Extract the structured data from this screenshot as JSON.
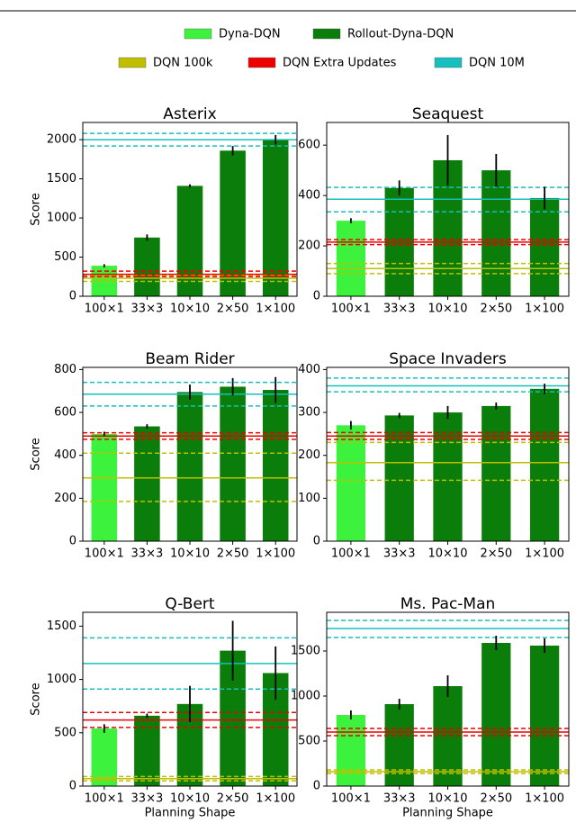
{
  "legend": [
    {
      "name": "Dyna-DQN",
      "color": "#3df23d"
    },
    {
      "name": "Rollout-Dyna-DQN",
      "color": "#0a7d0a"
    },
    {
      "name": "DQN 100k",
      "color": "#bfbf00"
    },
    {
      "name": "DQN Extra Updates",
      "color": "#ee0000"
    },
    {
      "name": "DQN 10M",
      "color": "#17bfbf"
    }
  ],
  "chart_data": [
    {
      "type": "bar",
      "title": "Asterix",
      "ylabel": "Score",
      "categories": [
        "100×1",
        "33×3",
        "10×10",
        "2×50",
        "1×100"
      ],
      "values": [
        390,
        750,
        1410,
        1860,
        2000
      ],
      "errors": [
        20,
        40,
        20,
        60,
        60
      ],
      "bar_colors": [
        "#3df23d",
        "#0a7d0a",
        "#0a7d0a",
        "#0a7d0a",
        "#0a7d0a"
      ],
      "ylim": [
        0,
        2220
      ],
      "yticks": [
        0,
        500,
        1000,
        1500,
        2000
      ],
      "baselines": [
        {
          "color": "#bfbf00",
          "low": 190,
          "mean": 230,
          "high": 270
        },
        {
          "color": "#ee0000",
          "low": 250,
          "mean": 280,
          "high": 320
        },
        {
          "color": "#17bfbf",
          "low": 1920,
          "mean": 2000,
          "high": 2080
        }
      ]
    },
    {
      "type": "bar",
      "title": "Seaquest",
      "categories": [
        "100×1",
        "33×3",
        "10×10",
        "2×50",
        "1×100"
      ],
      "values": [
        300,
        430,
        540,
        500,
        390
      ],
      "errors": [
        10,
        30,
        100,
        65,
        45
      ],
      "bar_colors": [
        "#3df23d",
        "#0a7d0a",
        "#0a7d0a",
        "#0a7d0a",
        "#0a7d0a"
      ],
      "ylim": [
        0,
        690
      ],
      "yticks": [
        0,
        200,
        400,
        600
      ],
      "baselines": [
        {
          "color": "#bfbf00",
          "low": 90,
          "mean": 110,
          "high": 130
        },
        {
          "color": "#ee0000",
          "low": 205,
          "mean": 215,
          "high": 225
        },
        {
          "color": "#17bfbf",
          "low": 335,
          "mean": 385,
          "high": 432
        }
      ]
    },
    {
      "type": "bar",
      "title": "Beam Rider",
      "ylabel": "Score",
      "categories": [
        "100×1",
        "33×3",
        "10×10",
        "2×50",
        "1×100"
      ],
      "values": [
        500,
        535,
        695,
        720,
        705
      ],
      "errors": [
        10,
        10,
        35,
        40,
        60
      ],
      "bar_colors": [
        "#3df23d",
        "#0a7d0a",
        "#0a7d0a",
        "#0a7d0a",
        "#0a7d0a"
      ],
      "ylim": [
        0,
        810
      ],
      "yticks": [
        0,
        200,
        400,
        600,
        800
      ],
      "baselines": [
        {
          "color": "#bfbf00",
          "low": 185,
          "mean": 295,
          "high": 410
        },
        {
          "color": "#ee0000",
          "low": 475,
          "mean": 490,
          "high": 505
        },
        {
          "color": "#17bfbf",
          "low": 630,
          "mean": 685,
          "high": 740
        }
      ]
    },
    {
      "type": "bar",
      "title": "Space Invaders",
      "categories": [
        "100×1",
        "33×3",
        "10×10",
        "2×50",
        "1×100"
      ],
      "values": [
        270,
        293,
        300,
        315,
        355
      ],
      "errors": [
        10,
        6,
        15,
        8,
        12
      ],
      "bar_colors": [
        "#3df23d",
        "#0a7d0a",
        "#0a7d0a",
        "#0a7d0a",
        "#0a7d0a"
      ],
      "ylim": [
        0,
        405
      ],
      "yticks": [
        0,
        100,
        200,
        300,
        400
      ],
      "baselines": [
        {
          "color": "#bfbf00",
          "low": 142,
          "mean": 183,
          "high": 230
        },
        {
          "color": "#ee0000",
          "low": 237,
          "mean": 245,
          "high": 253
        },
        {
          "color": "#17bfbf",
          "low": 348,
          "mean": 362,
          "high": 380
        }
      ]
    },
    {
      "type": "bar",
      "title": "Q-Bert",
      "ylabel": "Score",
      "xlabel": "Planning Shape",
      "categories": [
        "100×1",
        "33×3",
        "10×10",
        "2×50",
        "1×100"
      ],
      "values": [
        540,
        660,
        770,
        1270,
        1060
      ],
      "errors": [
        40,
        20,
        170,
        280,
        250
      ],
      "bar_colors": [
        "#3df23d",
        "#0a7d0a",
        "#0a7d0a",
        "#0a7d0a",
        "#0a7d0a"
      ],
      "ylim": [
        0,
        1630
      ],
      "yticks": [
        0,
        500,
        1000,
        1500
      ],
      "baselines": [
        {
          "color": "#bfbf00",
          "low": 50,
          "mean": 70,
          "high": 90
        },
        {
          "color": "#ee0000",
          "low": 550,
          "mean": 620,
          "high": 690
        },
        {
          "color": "#17bfbf",
          "low": 910,
          "mean": 1150,
          "high": 1390
        }
      ]
    },
    {
      "type": "bar",
      "title": "Ms. Pac-Man",
      "xlabel": "Planning Shape",
      "categories": [
        "100×1",
        "33×3",
        "10×10",
        "2×50",
        "1×100"
      ],
      "values": [
        790,
        910,
        1110,
        1590,
        1560
      ],
      "errors": [
        50,
        60,
        120,
        80,
        80
      ],
      "bar_colors": [
        "#3df23d",
        "#0a7d0a",
        "#0a7d0a",
        "#0a7d0a",
        "#0a7d0a"
      ],
      "ylim": [
        0,
        1930
      ],
      "yticks": [
        0,
        500,
        1000,
        1500
      ],
      "baselines": [
        {
          "color": "#bfbf00",
          "low": 140,
          "mean": 160,
          "high": 180
        },
        {
          "color": "#ee0000",
          "low": 560,
          "mean": 600,
          "high": 640
        },
        {
          "color": "#17bfbf",
          "low": 1650,
          "mean": 1750,
          "high": 1840
        }
      ]
    }
  ]
}
